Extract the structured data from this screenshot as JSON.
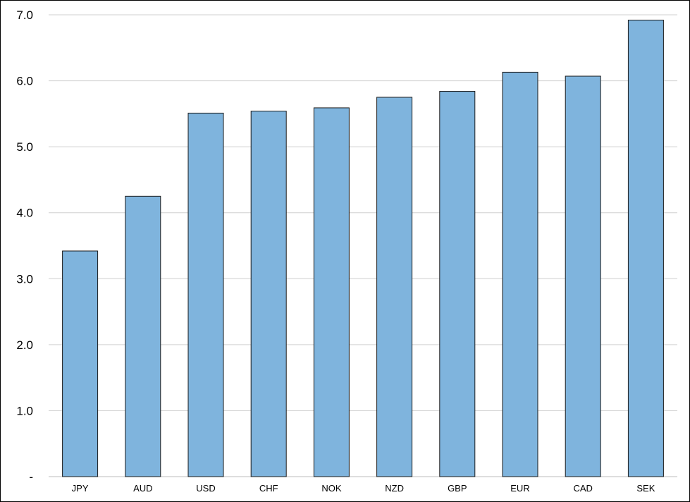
{
  "chart_data": {
    "type": "bar",
    "title": "",
    "xlabel": "",
    "ylabel": "",
    "categories": [
      "JPY",
      "AUD",
      "USD",
      "CHF",
      "NOK",
      "NZD",
      "GBP",
      "EUR",
      "CAD",
      "SEK"
    ],
    "values": [
      3.42,
      4.25,
      5.51,
      5.54,
      5.59,
      5.75,
      5.84,
      6.13,
      6.07,
      6.92
    ],
    "ylim": [
      0,
      7
    ],
    "yticks": [
      {
        "value": 0,
        "label": "-"
      },
      {
        "value": 1,
        "label": "1.0"
      },
      {
        "value": 2,
        "label": "2.0"
      },
      {
        "value": 3,
        "label": "3.0"
      },
      {
        "value": 4,
        "label": "4.0"
      },
      {
        "value": 5,
        "label": "5.0"
      },
      {
        "value": 6,
        "label": "6.0"
      },
      {
        "value": 7,
        "label": "7.0"
      }
    ],
    "grid": true,
    "legend": "none",
    "colors": {
      "bar_fill": "#7fb4dd",
      "bar_stroke": "#1a1a1a",
      "grid": "#d0d0d0"
    }
  }
}
